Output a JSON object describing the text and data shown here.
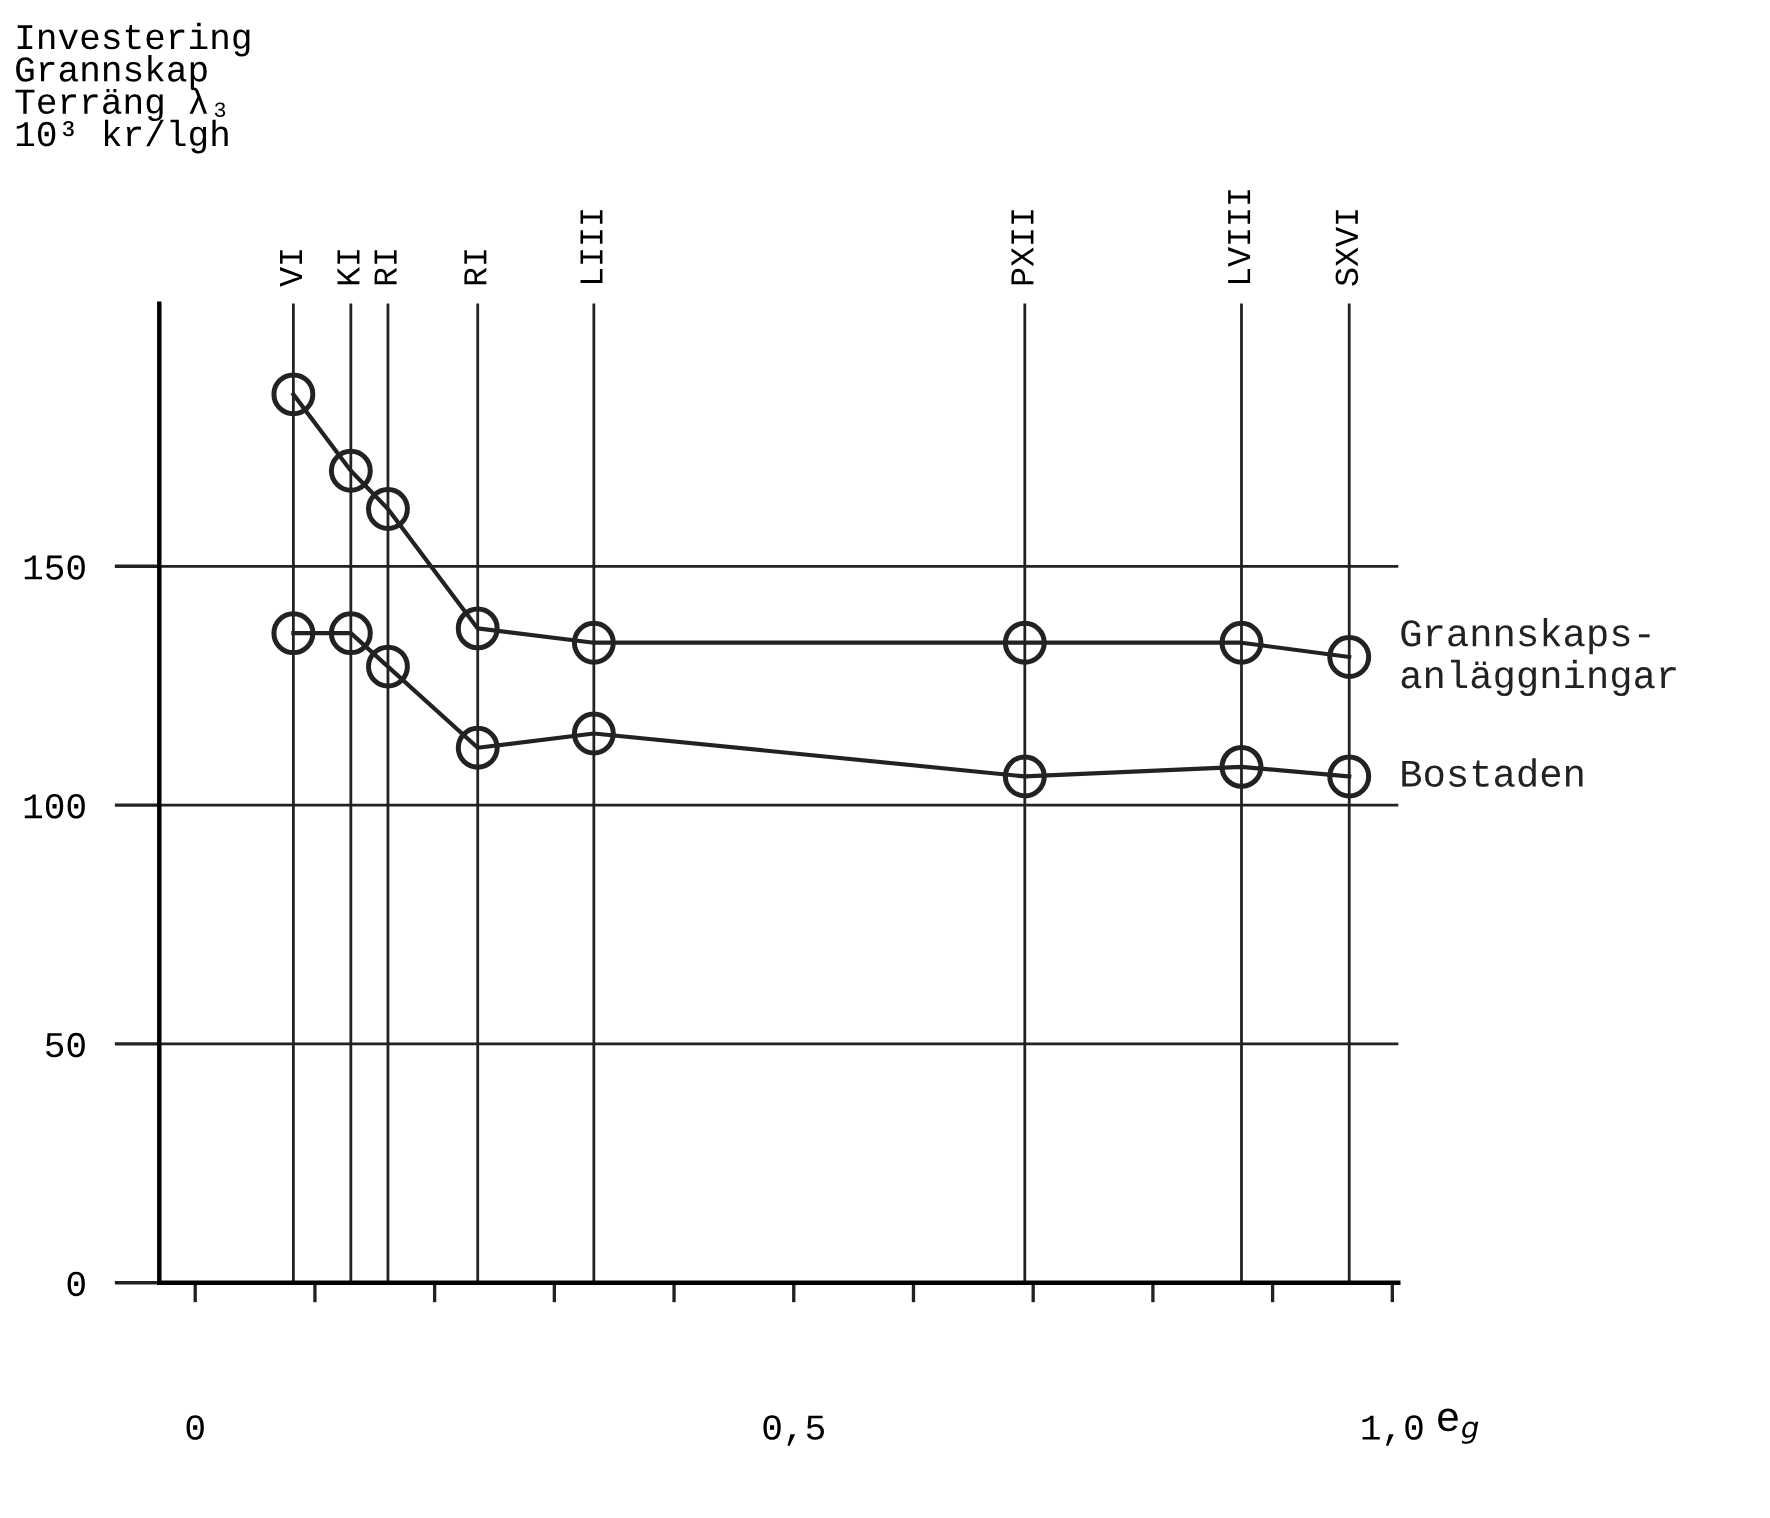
{
  "chart_data": {
    "type": "line",
    "ylabel": "Investering\nGrannskap\nTerräng λ₃\n10³ kr/lgh",
    "xlabel": "e$_{g}$",
    "x": [
      0.082,
      0.13,
      0.161,
      0.236,
      0.333,
      0.693,
      0.874,
      0.964
    ],
    "series": [
      {
        "name": "Grannskaps-\nanläggningar",
        "color": "#222222",
        "values": [
          186,
          170,
          162,
          137,
          134,
          134,
          134,
          131
        ]
      },
      {
        "name": "Bostaden",
        "color": "#222222",
        "values": [
          136,
          136,
          129,
          112,
          115,
          106,
          108,
          106
        ]
      }
    ],
    "ref_lines": [
      {
        "axis": "x",
        "value": 0.082,
        "label": "VI"
      },
      {
        "axis": "x",
        "value": 0.13,
        "label": "KI"
      },
      {
        "axis": "x",
        "value": 0.161,
        "label": "RI"
      },
      {
        "axis": "x",
        "value": 0.236,
        "label": "RI"
      },
      {
        "axis": "x",
        "value": 0.333,
        "label": "LIII"
      },
      {
        "axis": "x",
        "value": 0.693,
        "label": "PXII"
      },
      {
        "axis": "x",
        "value": 0.874,
        "label": "LVIII"
      },
      {
        "axis": "x",
        "value": 0.964,
        "label": "SXVI"
      }
    ],
    "xlim": [
      -0.03,
      1.005
    ],
    "xticks": [
      {
        "value": 0,
        "label": "0"
      },
      {
        "value": 0.1,
        "label": null
      },
      {
        "value": 0.2,
        "label": null
      },
      {
        "value": 0.3,
        "label": null
      },
      {
        "value": 0.4,
        "label": null
      },
      {
        "value": 0.5,
        "label": "0,5"
      },
      {
        "value": 0.6,
        "label": null
      },
      {
        "value": 0.7,
        "label": null
      },
      {
        "value": 0.8,
        "label": null
      },
      {
        "value": 0.9,
        "label": null
      },
      {
        "value": 1.0,
        "label": "1,0"
      }
    ],
    "ylim": [
      0,
      205
    ],
    "yticks": [
      0,
      50,
      100,
      150
    ],
    "grid": "y",
    "marker": "circle",
    "line_style": "solid"
  }
}
